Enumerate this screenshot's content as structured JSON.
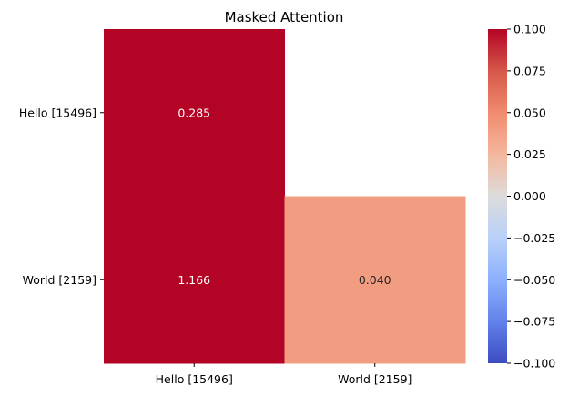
{
  "chart_data": {
    "type": "heatmap",
    "title": "Masked Attention",
    "x_categories": [
      "Hello [15496]",
      "World [2159]"
    ],
    "y_categories": [
      "Hello [15496]",
      "World [2159]"
    ],
    "cells": [
      {
        "row": 0,
        "col": 0,
        "value": 0.285,
        "label": "0.285",
        "masked": false
      },
      {
        "row": 0,
        "col": 1,
        "value": null,
        "label": "",
        "masked": true
      },
      {
        "row": 1,
        "col": 0,
        "value": 1.166,
        "label": "1.166",
        "masked": false
      },
      {
        "row": 1,
        "col": 1,
        "value": 0.04,
        "label": "0.040",
        "masked": false
      }
    ],
    "colormap": "coolwarm",
    "color_range": [
      -0.1,
      0.1
    ],
    "colorbar": {
      "ticks": [
        0.1,
        0.075,
        0.05,
        0.025,
        0.0,
        -0.025,
        -0.05,
        -0.075,
        -0.1
      ],
      "tick_labels": [
        "0.100",
        "0.075",
        "0.050",
        "0.025",
        "0.000",
        "−0.025",
        "−0.050",
        "−0.075",
        "−0.100"
      ]
    },
    "colors": {
      "high": "#b40426",
      "cell_0_040": "#f7ad90",
      "mid": "#dddddd",
      "low": "#3b4cc0",
      "light_text": "#ffffff",
      "dark_text": "#262626"
    }
  }
}
